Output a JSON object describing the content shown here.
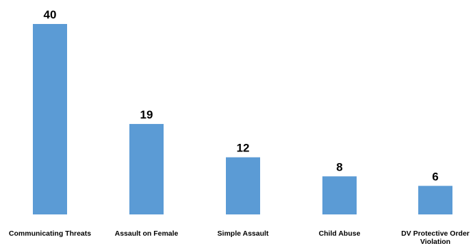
{
  "chart_data": {
    "type": "bar",
    "title": "",
    "xlabel": "",
    "ylabel": "",
    "categories": [
      [
        "Communicating Threats"
      ],
      [
        "Assault on Female"
      ],
      [
        "Simple Assault"
      ],
      [
        "Child Abuse"
      ],
      [
        "DV Protective Order",
        "Violation"
      ]
    ],
    "values": [
      40,
      19,
      12,
      8,
      6
    ],
    "ylim": [
      0,
      40
    ],
    "grid": false,
    "legend": "none",
    "bar_color": "#5b9bd5",
    "data_labels": true
  }
}
